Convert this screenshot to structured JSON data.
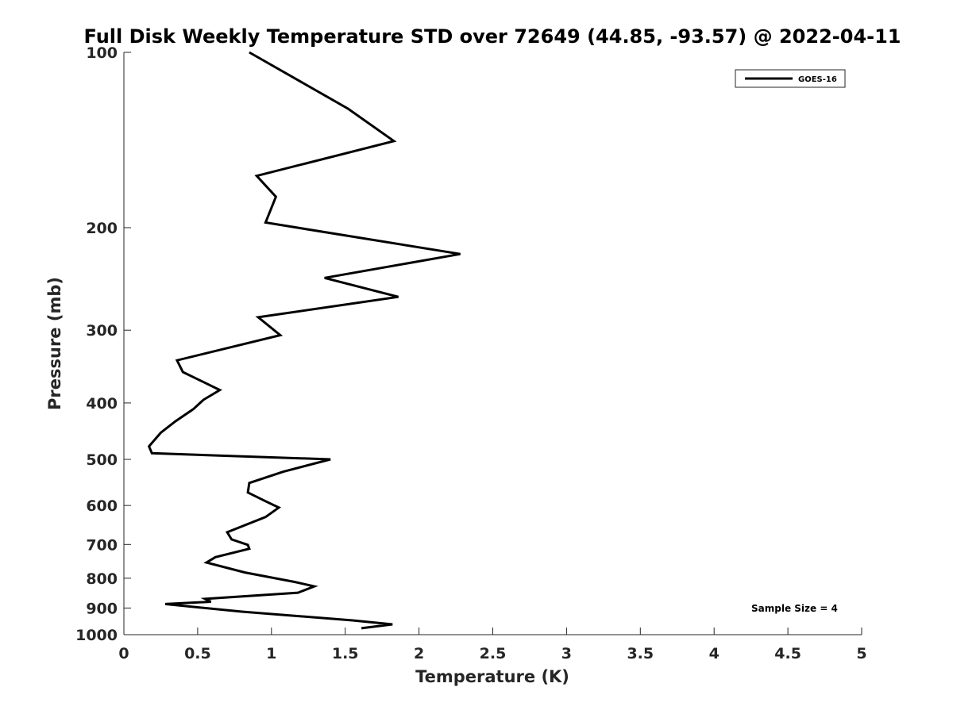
{
  "chart_data": {
    "type": "line",
    "title": "Full Disk Weekly Temperature STD over 72649 (44.85, -93.57) @ 2022-04-11",
    "xlabel": "Temperature (K)",
    "ylabel": "Pressure (mb)",
    "xlim": [
      0,
      5
    ],
    "ylim": [
      100,
      1000
    ],
    "y_scale": "log",
    "y_reversed": true,
    "x_ticks": [
      "0",
      "0.5",
      "1",
      "1.5",
      "2",
      "2.5",
      "3",
      "3.5",
      "4",
      "4.5",
      "5"
    ],
    "x_tick_values": [
      0,
      0.5,
      1,
      1.5,
      2,
      2.5,
      3,
      3.5,
      4,
      4.5,
      5
    ],
    "y_ticks": [
      "100",
      "200",
      "300",
      "400",
      "500",
      "600",
      "700",
      "800",
      "900",
      "1000"
    ],
    "y_tick_values": [
      100,
      200,
      300,
      400,
      500,
      600,
      700,
      800,
      900,
      1000
    ],
    "grid": false,
    "legend_position": "top-right",
    "annotation": "Sample Size = 4",
    "series": [
      {
        "name": "GOES-16",
        "color": "#000000",
        "x": [
          0.85,
          1.52,
          1.83,
          0.9,
          1.03,
          0.96,
          2.28,
          1.36,
          1.86,
          0.91,
          1.06,
          0.36,
          0.4,
          0.65,
          0.54,
          0.47,
          0.35,
          0.25,
          0.17,
          0.19,
          1.4,
          1.08,
          0.85,
          0.84,
          0.96,
          1.05,
          0.96,
          0.7,
          0.73,
          0.84,
          0.85,
          0.62,
          0.56,
          0.82,
          1.16,
          1.29,
          1.18,
          0.55,
          0.59,
          0.28,
          0.8,
          1.55,
          1.82,
          1.61
        ],
        "y": [
          100,
          125,
          142,
          163,
          177,
          196,
          222,
          244,
          263,
          285,
          306,
          338,
          354,
          380,
          395,
          410,
          430,
          450,
          475,
          488,
          500,
          525,
          549,
          570,
          590,
          605,
          628,
          667,
          686,
          701,
          712,
          736,
          752,
          782,
          812,
          826,
          847,
          868,
          878,
          886,
          913,
          945,
          960,
          975
        ]
      }
    ]
  }
}
